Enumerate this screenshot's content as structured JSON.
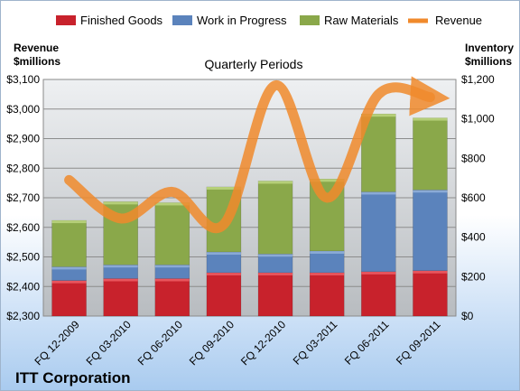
{
  "chart_data": {
    "type": "bar",
    "stacked": true,
    "title": "ITT Corporation",
    "subtitle": "Quarterly Periods",
    "categories": [
      "FQ 12-2009",
      "FQ 03-2010",
      "FQ 06-2010",
      "FQ 09-2010",
      "FQ 12-2010",
      "FQ 03-2011",
      "FQ 06-2011",
      "FQ 09-2011"
    ],
    "series": [
      {
        "name": "Finished Goods",
        "axis": "right",
        "color": "#c8222c",
        "values": [
          180,
          190,
          190,
          220,
          220,
          220,
          225,
          230
        ]
      },
      {
        "name": "Work in Progress",
        "axis": "right",
        "color": "#5b83bc",
        "values": [
          70,
          70,
          70,
          105,
          95,
          110,
          405,
          410
        ]
      },
      {
        "name": "Raw Materials",
        "axis": "right",
        "color": "#8aa84a",
        "values": [
          235,
          320,
          315,
          330,
          370,
          365,
          395,
          365
        ]
      },
      {
        "name": "Revenue",
        "axis": "left",
        "type": "line",
        "color": "#f08a2c",
        "values": [
          2760,
          2630,
          2720,
          2610,
          3080,
          2700,
          3050,
          3040
        ]
      }
    ],
    "y_left": {
      "label_line1": "Revenue",
      "label_line2": "$millions",
      "min": 2300,
      "max": 3100,
      "step": 100,
      "ticks": [
        "$2,300",
        "$2,400",
        "$2,500",
        "$2,600",
        "$2,700",
        "$2,800",
        "$2,900",
        "$3,000",
        "$3,100"
      ]
    },
    "y_right": {
      "label_line1": "Inventory",
      "label_line2": "$millions",
      "min": 0,
      "max": 1200,
      "step": 200,
      "ticks": [
        "$0",
        "$200",
        "$400",
        "$600",
        "$800",
        "$1,000",
        "$1,200"
      ]
    },
    "legend_position": "top",
    "grid": true
  }
}
